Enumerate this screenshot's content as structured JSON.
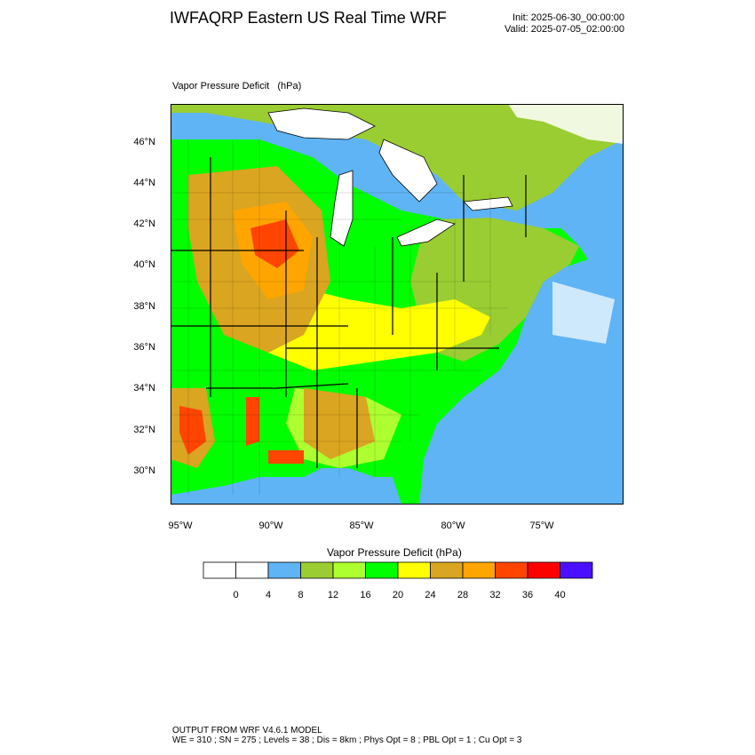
{
  "header": {
    "title": "IWFAQRP Eastern US Real Time WRF",
    "init": "Init: 2025-06-30_00:00:00",
    "valid": "Valid: 2025-07-05_02:00:00"
  },
  "map": {
    "field_label": "Vapor Pressure Deficit   (hPa)",
    "lat_labels": [
      "46°N",
      "44°N",
      "42°N",
      "40°N",
      "38°N",
      "36°N",
      "34°N",
      "32°N",
      "30°N"
    ],
    "lon_labels": [
      "95°W",
      "90°W",
      "85°W",
      "80°W",
      "75°W"
    ],
    "colors": {
      "ocean": "#5fb4f5",
      "land_low": "#9acd32",
      "land_mid": "#00ff00",
      "land_light": "#adff2f",
      "yellow": "#ffff00",
      "tan": "#daa520",
      "orange": "#ffa500",
      "red_orange": "#ff4500",
      "red": "#ff0000",
      "lake": "#ffffff",
      "border": "#000000"
    }
  },
  "colorbar": {
    "title": "Vapor Pressure Deficit  (hPa)",
    "colors": [
      "#ffffff",
      "#ffffff",
      "#5fb4f5",
      "#9acd32",
      "#adff2f",
      "#00ff00",
      "#ffff00",
      "#daa520",
      "#ffa500",
      "#ff4500",
      "#ff0000",
      "#4b0fff"
    ],
    "ticks": [
      "0",
      "4",
      "8",
      "12",
      "16",
      "20",
      "24",
      "28",
      "32",
      "36",
      "40"
    ]
  },
  "footer": {
    "line1": "OUTPUT FROM WRF V4.6.1 MODEL",
    "line2": "WE = 310 ; SN = 275 ; Levels = 38 ; Dis = 8km ; Phys Opt = 8 ; PBL Opt = 1 ; Cu Opt = 3"
  }
}
